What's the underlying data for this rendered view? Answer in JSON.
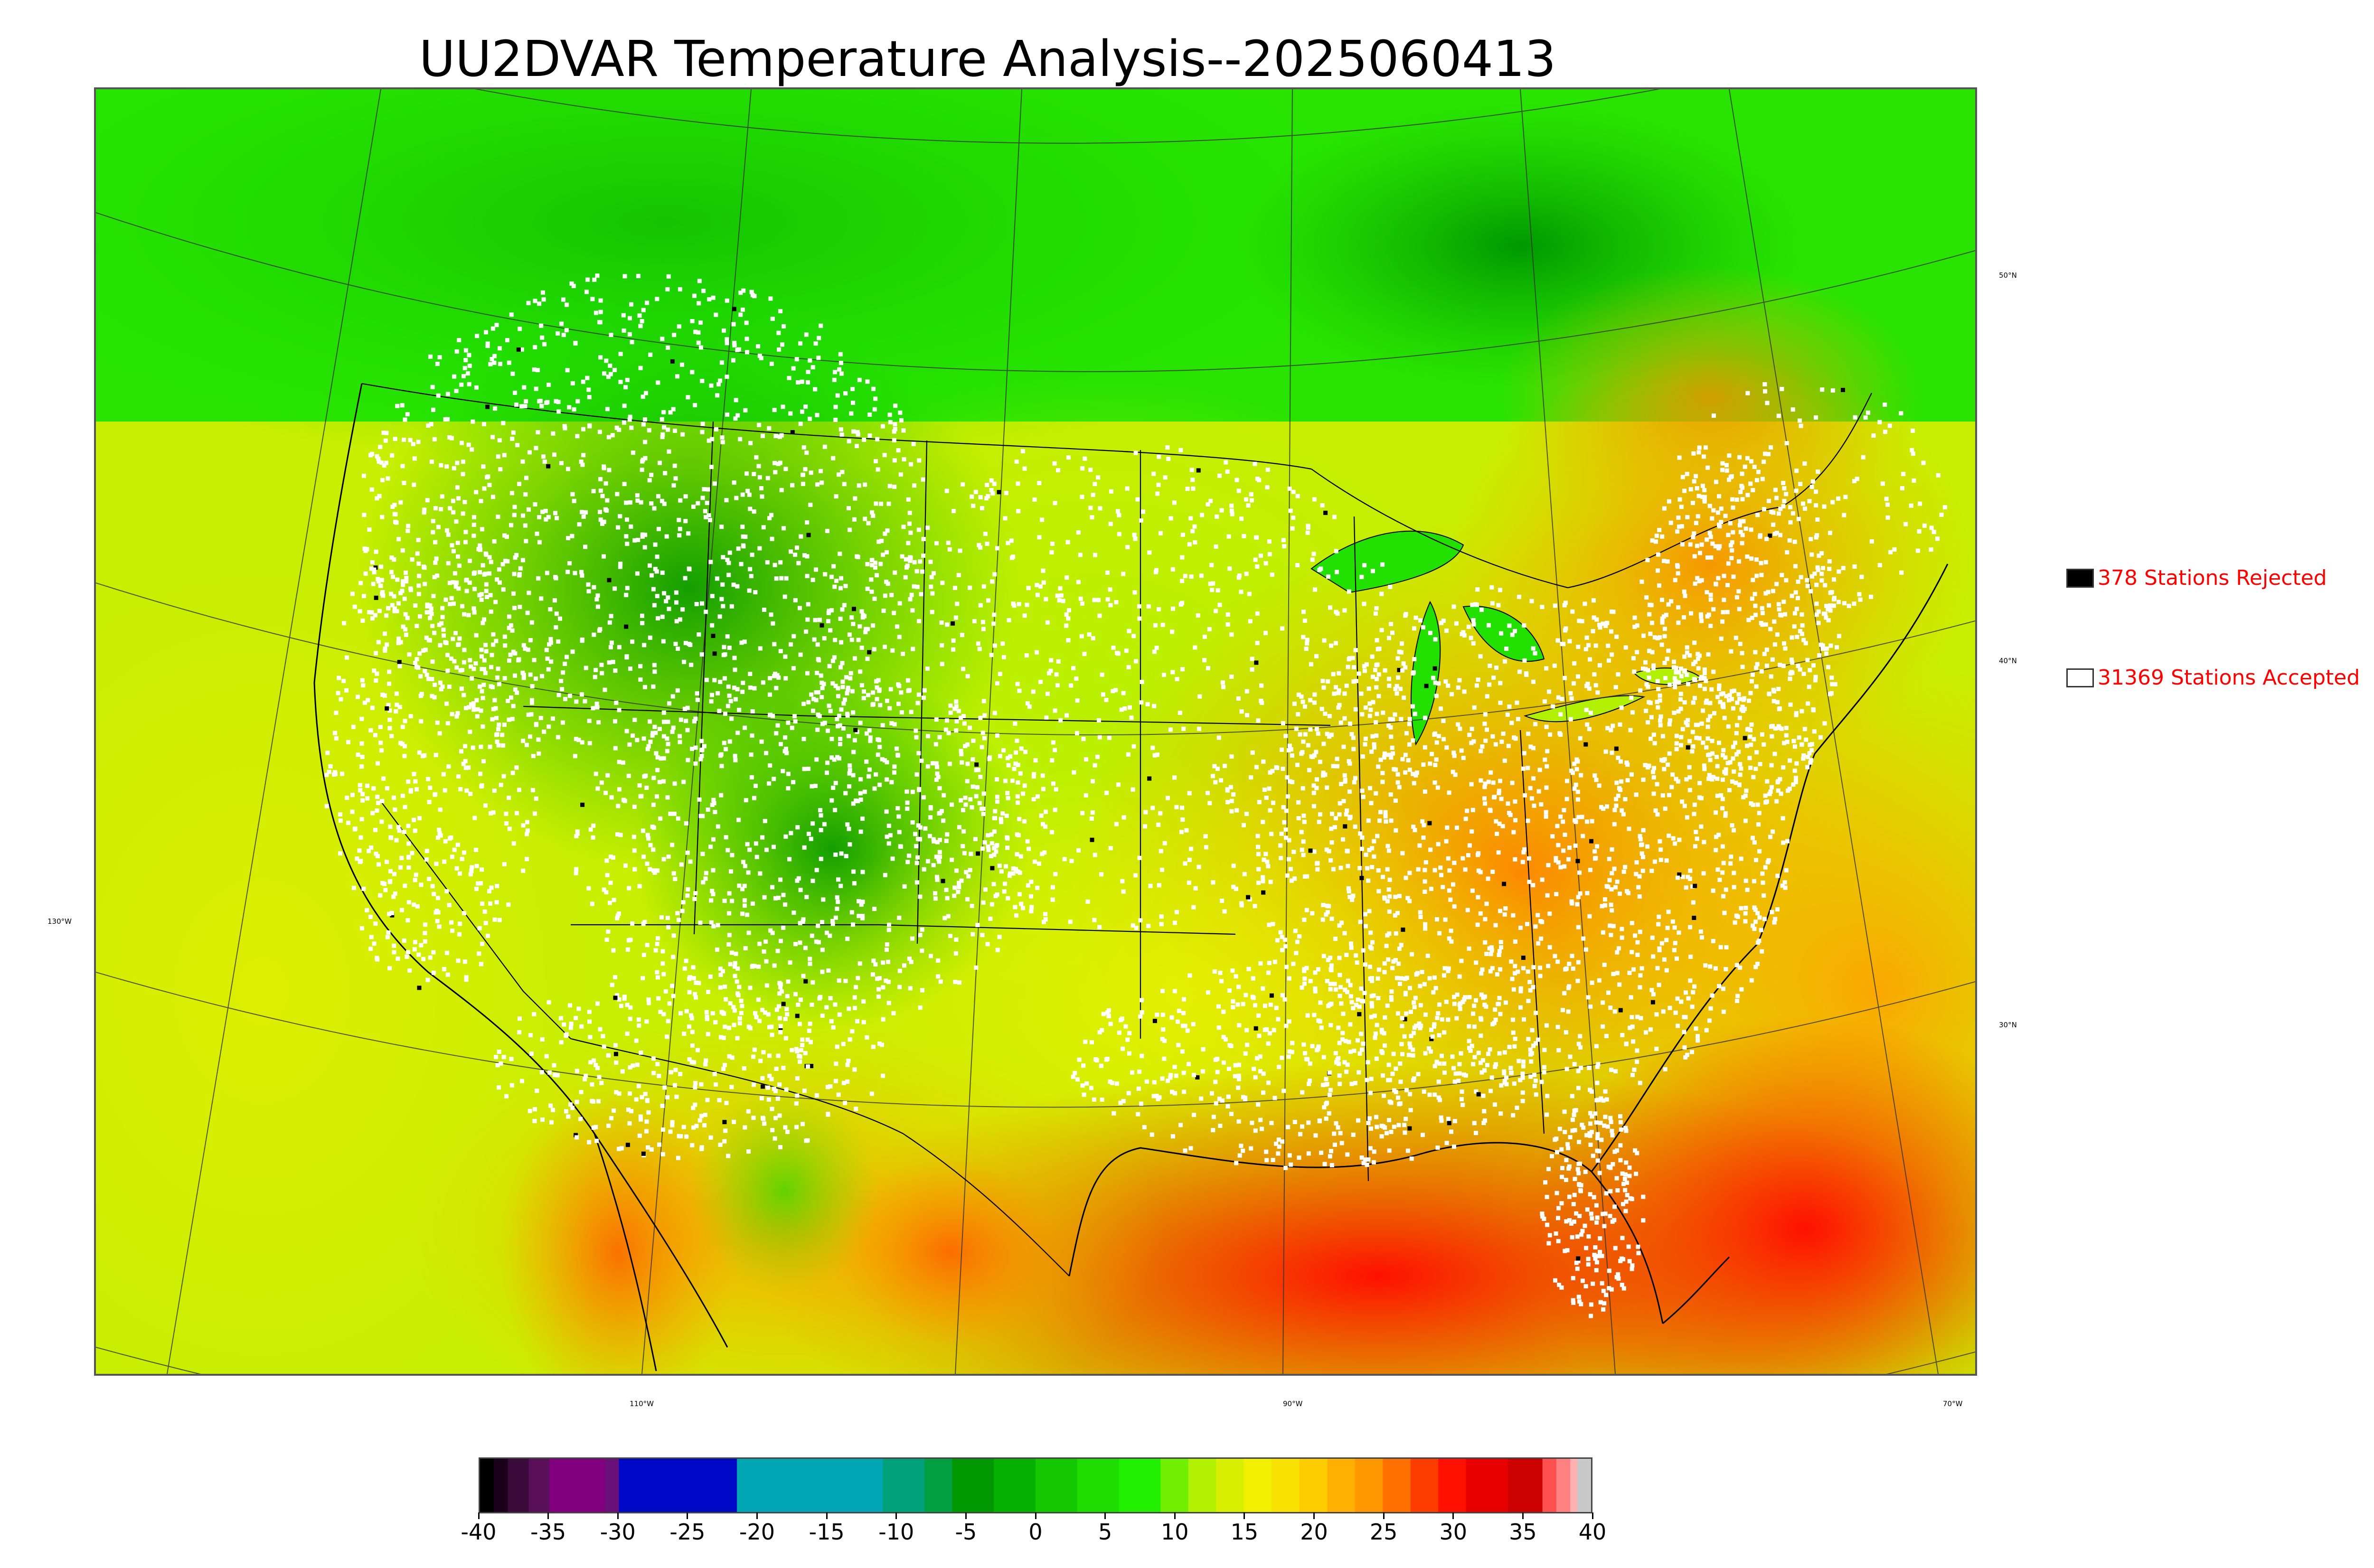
{
  "title": "UU2DVAR Temperature Analysis--2025060413",
  "map": {
    "projection": "lambert-conformal",
    "field": "2m temperature",
    "longitude_labels": [
      "130°W",
      "110°W",
      "90°W",
      "70°W"
    ],
    "latitude_labels": [
      "50°N",
      "40°N",
      "30°N"
    ],
    "land_color": "#22dd00",
    "cold_color": "#00aa00",
    "warm_color": "#ff8800",
    "hot_color": "#ff1100"
  },
  "legend": {
    "rejected": {
      "label": "378 Stations Rejected",
      "count": 378,
      "swatch_color": "#000000"
    },
    "accepted": {
      "label": "31369 Stations Accepted",
      "count": 31369,
      "swatch_color": "#ffffff"
    },
    "text_color": "#ff0000"
  },
  "colorbar": {
    "min": -40,
    "max": 40,
    "tick_labels": [
      "-40",
      "-35",
      "-30",
      "-25",
      "-20",
      "-15",
      "-10",
      "-5",
      "0",
      "5",
      "10",
      "15",
      "20",
      "25",
      "30",
      "35",
      "40"
    ],
    "segments": [
      {
        "from": -40,
        "to": -39,
        "color": "#000000"
      },
      {
        "from": -39,
        "to": -38,
        "color": "#1a001a"
      },
      {
        "from": -38,
        "to": -36.5,
        "color": "#3a0a3a"
      },
      {
        "from": -36.5,
        "to": -35,
        "color": "#5a0f5a"
      },
      {
        "from": -35,
        "to": -31,
        "color": "#800080"
      },
      {
        "from": -31,
        "to": -30,
        "color": "#6a107a"
      },
      {
        "from": -30,
        "to": -21.5,
        "color": "#0008c8"
      },
      {
        "from": -21.5,
        "to": -11,
        "color": "#00a6b4"
      },
      {
        "from": -11,
        "to": -8,
        "color": "#00a07a"
      },
      {
        "from": -8,
        "to": -6,
        "color": "#00a040"
      },
      {
        "from": -6,
        "to": -3,
        "color": "#009800"
      },
      {
        "from": -3,
        "to": 0,
        "color": "#06b000"
      },
      {
        "from": 0,
        "to": 3,
        "color": "#14c800"
      },
      {
        "from": 3,
        "to": 6,
        "color": "#1edc00"
      },
      {
        "from": 6,
        "to": 9,
        "color": "#20f000"
      },
      {
        "from": 9,
        "to": 11,
        "color": "#70f000"
      },
      {
        "from": 11,
        "to": 13,
        "color": "#b0f000"
      },
      {
        "from": 13,
        "to": 15,
        "color": "#d8f000"
      },
      {
        "from": 15,
        "to": 17,
        "color": "#f0f000"
      },
      {
        "from": 17,
        "to": 19,
        "color": "#f8e000"
      },
      {
        "from": 19,
        "to": 21,
        "color": "#ffcc00"
      },
      {
        "from": 21,
        "to": 23,
        "color": "#ffb000"
      },
      {
        "from": 23,
        "to": 25,
        "color": "#ff9800"
      },
      {
        "from": 25,
        "to": 27,
        "color": "#ff7000"
      },
      {
        "from": 27,
        "to": 29,
        "color": "#ff3c00"
      },
      {
        "from": 29,
        "to": 31,
        "color": "#ff1000"
      },
      {
        "from": 31,
        "to": 34,
        "color": "#e80000"
      },
      {
        "from": 34,
        "to": 36.5,
        "color": "#cc0000"
      },
      {
        "from": 36.5,
        "to": 37.5,
        "color": "#ff5050"
      },
      {
        "from": 37.5,
        "to": 38.5,
        "color": "#ff8080"
      },
      {
        "from": 38.5,
        "to": 39,
        "color": "#ffb0b0"
      },
      {
        "from": 39,
        "to": 40,
        "color": "#c8c8c8"
      }
    ]
  }
}
